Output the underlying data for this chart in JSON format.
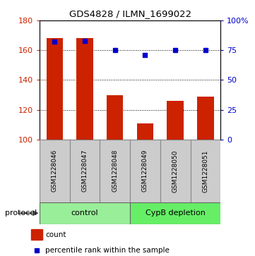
{
  "title": "GDS4828 / ILMN_1699022",
  "samples": [
    "GSM1228046",
    "GSM1228047",
    "GSM1228048",
    "GSM1228049",
    "GSM1228050",
    "GSM1228051"
  ],
  "bar_values": [
    168,
    168,
    130,
    111,
    126,
    129
  ],
  "percentile_values": [
    82,
    83,
    75,
    71,
    75,
    75
  ],
  "ymin": 100,
  "ymax": 180,
  "y2min": 0,
  "y2max": 100,
  "yticks": [
    100,
    120,
    140,
    160,
    180
  ],
  "y2ticks": [
    0,
    25,
    50,
    75,
    100
  ],
  "y2ticklabels": [
    "0",
    "25",
    "50",
    "75",
    "100%"
  ],
  "bar_color": "#cc2200",
  "dot_color": "#0000cc",
  "bar_width": 0.55,
  "groups": [
    {
      "label": "control",
      "samples": [
        0,
        1,
        2
      ],
      "color": "#99ee99"
    },
    {
      "label": "CypB depletion",
      "samples": [
        3,
        4,
        5
      ],
      "color": "#66ee66"
    }
  ],
  "protocol_label": "protocol",
  "legend_count_label": "count",
  "legend_pct_label": "percentile rank within the sample",
  "grid_color": "#000000",
  "bg_color": "#ffffff",
  "sample_box_color": "#cccccc"
}
